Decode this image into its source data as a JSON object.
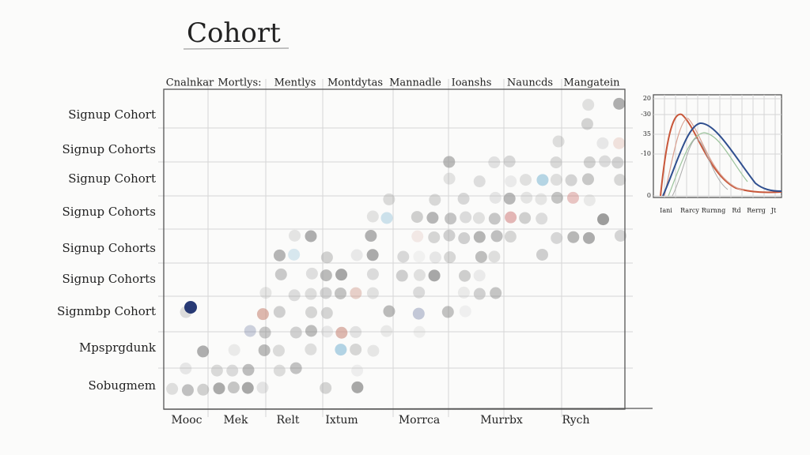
{
  "title": "Cohort",
  "column_headers": [
    "Cnalnkar",
    "Mortlys:",
    "Mentlys",
    "Montdytas",
    "Mannadle",
    "Ioanshs",
    "Nauncds",
    "Mangatein"
  ],
  "row_labels": [
    "Signup Cohort",
    "Signup Cohorts",
    "Signup Cohort",
    "Signup Cohorts",
    "Signup Cohorts",
    "Signup Cohorts",
    "Signmbp Cohort",
    "Mpsprgdunk",
    "Sobugmem"
  ],
  "bottom_labels": [
    "Mooc",
    "Mek",
    "Relt",
    "Ixtum",
    "Morrca",
    "Murrbx",
    "Rych"
  ],
  "mini_chart": {
    "y_labels": [
      "20",
      "-30",
      "35",
      "-10",
      "0"
    ],
    "x_labels": [
      "Iani",
      "Rarcy",
      "Rurnng",
      "Rd",
      "Rerrg",
      "Jt"
    ]
  }
}
